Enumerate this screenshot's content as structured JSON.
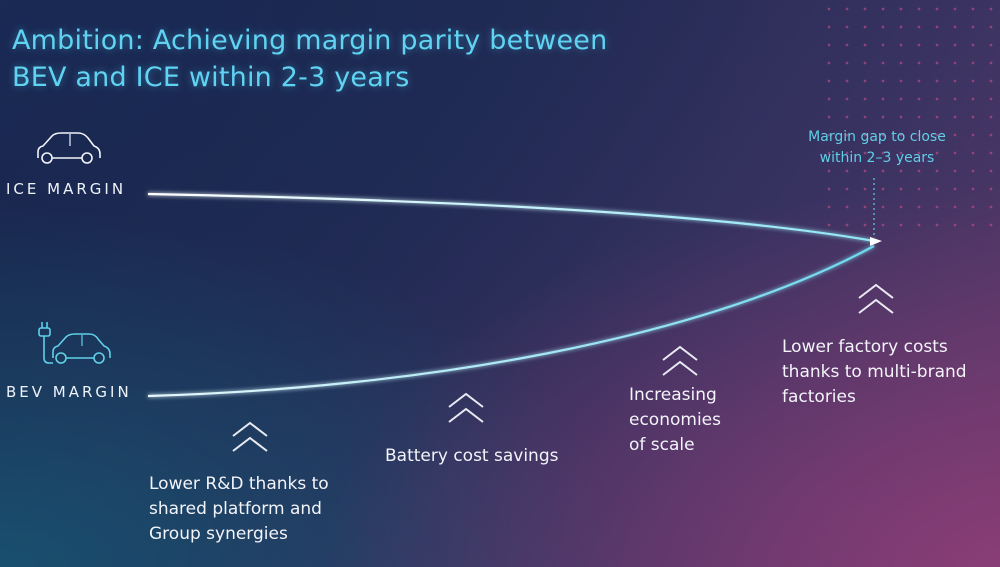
{
  "title": {
    "line1": "Ambition: Achieving margin parity between",
    "line2": "BEV and ICE within 2-3 years"
  },
  "ice": {
    "label": "ICE MARGIN",
    "icon": "car-icon"
  },
  "bev": {
    "label": "BEV MARGIN",
    "icon": "electric-car-icon"
  },
  "gap_note": {
    "line1": "Margin gap to close",
    "line2": "within 2–3 years"
  },
  "levers": [
    {
      "lines": [
        "Lower R&D thanks to",
        "shared platform and",
        "Group synergies"
      ],
      "icon": "double-chevron-up-icon"
    },
    {
      "lines": [
        "Battery cost savings"
      ],
      "icon": "double-chevron-up-icon"
    },
    {
      "lines": [
        "Increasing",
        "economies",
        "of scale"
      ],
      "icon": "double-chevron-up-icon"
    },
    {
      "lines": [
        "Lower factory costs",
        "thanks to multi-brand",
        "factories"
      ],
      "icon": "double-chevron-up-icon"
    }
  ],
  "colors": {
    "accent": "#60d3f3",
    "curve": "#8fe6f5",
    "chevron": "#e9eaf2",
    "text": "#f3f4f9",
    "dots": "#d7528a"
  }
}
